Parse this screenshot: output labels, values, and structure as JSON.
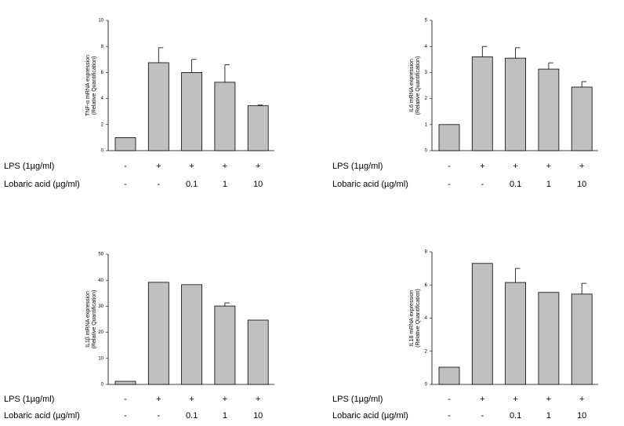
{
  "chart_data": [
    {
      "type": "bar",
      "ylabel": "TNF-α mRNA expression",
      "ylabel_sub": "(Relative Quantification)",
      "ylim": [
        0,
        10
      ],
      "yticks": [
        0,
        2,
        4,
        6,
        8,
        10
      ],
      "color": "#c0c0c0",
      "values": [
        1,
        6.75,
        6.0,
        5.25,
        3.45
      ],
      "errors": [
        null,
        1.15,
        1.0,
        1.35,
        0.05
      ],
      "treatments": [
        {
          "label": "LPS (1µg/ml)",
          "values": [
            "-",
            "+",
            "+",
            "+",
            "+"
          ]
        },
        {
          "label": "Lobaric acid (µg/ml)",
          "values": [
            "-",
            "-",
            "0.1",
            "1",
            "10"
          ]
        }
      ]
    },
    {
      "type": "bar",
      "ylabel": "IL6 mRNA expression",
      "ylabel_sub": "(Relative Quantification)",
      "ylim": [
        0,
        5
      ],
      "yticks": [
        0,
        1,
        2,
        3,
        4,
        5
      ],
      "color": "#c0c0c0",
      "values": [
        1,
        3.6,
        3.55,
        3.13,
        2.44
      ],
      "errors": [
        null,
        0.4,
        0.4,
        0.24,
        0.21
      ],
      "treatments": [
        {
          "label": "LPS (1µg/ml)",
          "values": [
            "-",
            "+",
            "+",
            "+",
            "+"
          ]
        },
        {
          "label": "Lobaric acid (µg/ml)",
          "values": [
            "-",
            "-",
            "0.1",
            "1",
            "10"
          ]
        }
      ]
    },
    {
      "type": "bar",
      "ylabel": "IL1β mRNA expression",
      "ylabel_sub": "(Relative Quantification)",
      "ylim": [
        0,
        50
      ],
      "yticks": [
        0,
        10,
        20,
        30,
        40,
        50
      ],
      "color": "#c0c0c0",
      "values": [
        1.2,
        39.2,
        38.3,
        30.1,
        24.7
      ],
      "errors": [
        null,
        null,
        null,
        1.2,
        null
      ],
      "treatments": [
        {
          "label": "LPS (1µg/ml)",
          "values": [
            "-",
            "+",
            "+",
            "+",
            "+"
          ]
        },
        {
          "label": "Lobaric acid (µg/ml)",
          "values": [
            "-",
            "-",
            "0.1",
            "1",
            "10"
          ]
        }
      ]
    },
    {
      "type": "bar",
      "ylabel": "IL18 mRNA expression",
      "ylabel_sub": "(Relative Quantification)",
      "ylim": [
        0,
        8
      ],
      "yticks": [
        0,
        2,
        4,
        6,
        8
      ],
      "color": "#c0c0c0",
      "values": [
        1.04,
        7.3,
        6.15,
        5.55,
        5.45
      ],
      "errors": [
        null,
        null,
        0.85,
        null,
        0.65
      ],
      "treatments": [
        {
          "label": "LPS (1µg/ml)",
          "values": [
            "-",
            "+",
            "+",
            "+",
            "+"
          ]
        },
        {
          "label": "Lobaric acid (µg/ml)",
          "values": [
            "-",
            "-",
            "0.1",
            "1",
            "10"
          ]
        }
      ]
    }
  ]
}
